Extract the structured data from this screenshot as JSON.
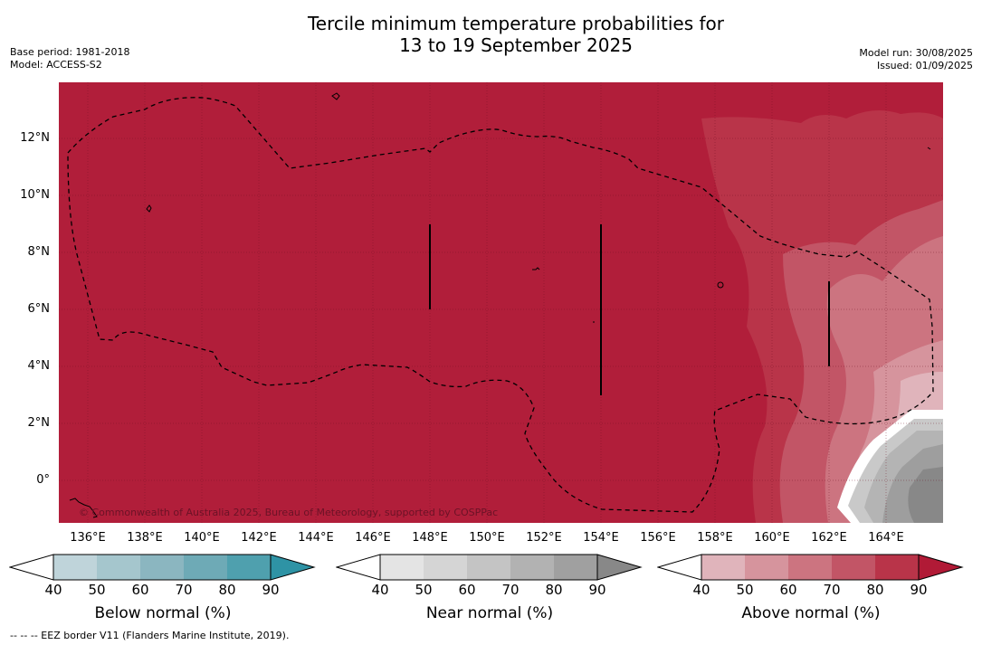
{
  "title_line1": "Tercile minimum temperature probabilities for",
  "title_line2": "13 to 19 September 2025",
  "base_period": "Base period: 1981-2018",
  "model": "Model: ACCESS-S2",
  "model_run": "Model run: 30/08/2025",
  "issued": "Issued: 01/09/2025",
  "copyright": "© Commonwealth of Australia 2025, Bureau of Meteorology, supported by COSPPac",
  "footnote": "-- -- -- EEZ border V11 (Flanders Marine Institute, 2019).",
  "lat_labels": [
    "12°N",
    "10°N",
    "8°N",
    "6°N",
    "4°N",
    "2°N",
    "0°"
  ],
  "lon_labels": [
    "136°E",
    "138°E",
    "140°E",
    "142°E",
    "144°E",
    "146°E",
    "148°E",
    "150°E",
    "152°E",
    "154°E",
    "156°E",
    "158°E",
    "160°E",
    "162°E",
    "164°E"
  ],
  "colorbars": [
    {
      "label": "Below normal (%)",
      "ticks": [
        "40",
        "50",
        "60",
        "70",
        "80",
        "90"
      ],
      "colors": [
        "#bfd4da",
        "#a5c6cd",
        "#8bb6c0",
        "#6eaab6",
        "#4fa0ae",
        "#2e93a5"
      ]
    },
    {
      "label": "Near normal (%)",
      "ticks": [
        "40",
        "50",
        "60",
        "70",
        "80",
        "90"
      ],
      "colors": [
        "#e4e4e4",
        "#d5d5d5",
        "#c4c4c4",
        "#b2b2b2",
        "#a0a0a0",
        "#888888"
      ]
    },
    {
      "label": "Above normal (%)",
      "ticks": [
        "40",
        "50",
        "60",
        "70",
        "80",
        "90"
      ],
      "colors": [
        "#e0b4bb",
        "#d6949d",
        "#cc7480",
        "#c25566",
        "#b93449",
        "#b11a36"
      ]
    }
  ],
  "colors": {
    "above_90": "#b11e3a",
    "above_80": "#b93449",
    "above_70": "#c25566",
    "above_60": "#cc7480",
    "near_50": "#c9c9c9",
    "near_60": "#b4b4b4",
    "near_70": "#9e9e9e",
    "near_80": "#888888"
  }
}
